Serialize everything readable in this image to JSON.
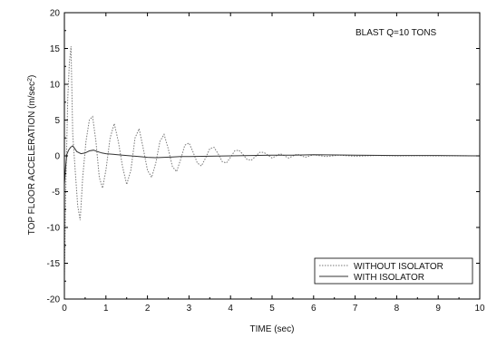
{
  "chart_data": {
    "type": "line",
    "title": "",
    "annotation": "BLAST Q=10 TONS",
    "xlabel": "TIME (sec)",
    "ylabel": "TOP FLOOR ACCELERATION (m/sec",
    "ylabel_sup": "2",
    "ylabel_close": ")",
    "xlim": [
      0,
      10
    ],
    "ylim": [
      -20,
      20
    ],
    "x_ticks": [
      0,
      1,
      2,
      3,
      4,
      5,
      6,
      7,
      8,
      9,
      10
    ],
    "y_ticks": [
      -20,
      -15,
      -10,
      -5,
      0,
      5,
      10,
      15,
      20
    ],
    "grid": false,
    "legend_position": "bottom-right",
    "series": [
      {
        "name": "WITHOUT ISOLATOR",
        "style": "dotted",
        "color": "#777777",
        "x": [
          0,
          0.04,
          0.08,
          0.12,
          0.16,
          0.2,
          0.26,
          0.32,
          0.38,
          0.44,
          0.52,
          0.6,
          0.68,
          0.76,
          0.84,
          0.92,
          1.0,
          1.1,
          1.2,
          1.3,
          1.4,
          1.5,
          1.6,
          1.7,
          1.8,
          1.9,
          2.0,
          2.1,
          2.2,
          2.3,
          2.4,
          2.5,
          2.6,
          2.7,
          2.8,
          2.9,
          3.0,
          3.1,
          3.2,
          3.3,
          3.4,
          3.5,
          3.6,
          3.7,
          3.8,
          3.9,
          4.0,
          4.1,
          4.2,
          4.3,
          4.4,
          4.5,
          4.6,
          4.7,
          4.8,
          4.9,
          5.0,
          5.2,
          5.4,
          5.6,
          5.8,
          6.0,
          6.3,
          6.6,
          7.0,
          7.5,
          8.0,
          8.5,
          9.0,
          9.5,
          10.0
        ],
        "y": [
          -17,
          -3,
          8,
          13,
          15.3,
          3,
          -2,
          -7,
          -9,
          -3,
          2,
          5,
          5.5,
          2,
          -3,
          -4.5,
          -2,
          2.5,
          4.5,
          2,
          -1.5,
          -4,
          -2,
          2.5,
          3.8,
          1,
          -2,
          -3,
          -1,
          2,
          3,
          1,
          -1.5,
          -2.2,
          -0.5,
          1.5,
          1.8,
          0.5,
          -1,
          -1.4,
          -0.3,
          1,
          1.2,
          0.3,
          -0.8,
          -1,
          -0.2,
          0.7,
          0.8,
          0.2,
          -0.5,
          -0.6,
          -0.1,
          0.5,
          0.5,
          0.1,
          -0.3,
          0.3,
          -0.3,
          0.25,
          -0.2,
          0.15,
          -0.1,
          0.1,
          -0.05,
          0.05,
          0,
          0.02,
          0,
          0.01,
          0
        ]
      },
      {
        "name": "WITH ISOLATOR",
        "style": "solid",
        "color": "#333333",
        "x": [
          0,
          0.03,
          0.06,
          0.1,
          0.15,
          0.2,
          0.25,
          0.3,
          0.4,
          0.5,
          0.6,
          0.7,
          0.8,
          0.9,
          1.0,
          1.2,
          1.4,
          1.6,
          1.8,
          2.0,
          2.2,
          2.4,
          2.6,
          2.8,
          3.0,
          3.5,
          4.0,
          4.5,
          5.0,
          5.5,
          6.0,
          7.0,
          8.0,
          9.0,
          10.0
        ],
        "y": [
          -4,
          -1.5,
          0.2,
          0.8,
          1.2,
          1.4,
          1.0,
          0.6,
          0.3,
          0.4,
          0.7,
          0.8,
          0.6,
          0.4,
          0.3,
          0.2,
          0.1,
          0,
          -0.1,
          -0.2,
          -0.25,
          -0.2,
          -0.15,
          -0.1,
          -0.1,
          -0.05,
          0,
          0.05,
          0.1,
          0.1,
          0.15,
          0.1,
          0.05,
          0.05,
          0
        ]
      }
    ]
  }
}
